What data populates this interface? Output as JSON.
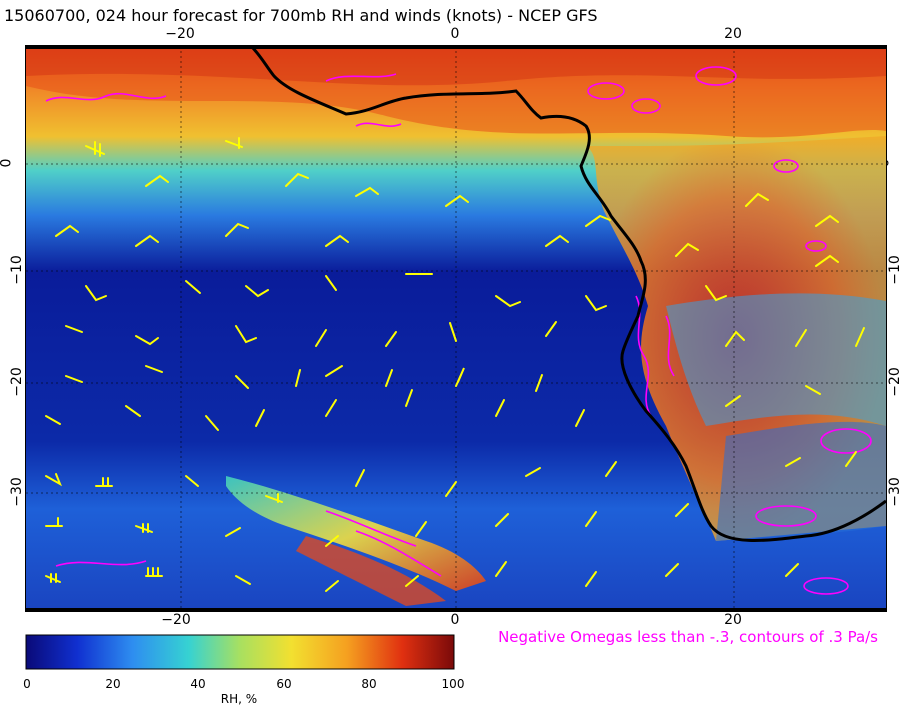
{
  "title": "15060700, 024 hour forecast for 700mb RH and winds (knots) - NCEP GFS",
  "axes": {
    "lon_ticks_top": [
      "−20",
      "0",
      "20"
    ],
    "lon_ticks_bottom": [
      "−20",
      "0",
      "20"
    ],
    "lat_ticks_left": [
      "0",
      "−10",
      "−20",
      "−30"
    ],
    "lat_ticks_right": [
      "0",
      "−10",
      "−20",
      "−30"
    ]
  },
  "colorbar": {
    "ticks": [
      "0",
      "20",
      "40",
      "60",
      "80",
      "100"
    ],
    "label": "RH, %",
    "colors": [
      "#0a0a78",
      "#1030d0",
      "#2e8ef0",
      "#36d2d2",
      "#a8e060",
      "#f2e030",
      "#f5a020",
      "#e03010",
      "#7a0a0a"
    ]
  },
  "omega_note": "Negative Omegas less than -.3, contours of .3 Pa/s",
  "colors": {
    "wind_barbs": "#ffff00",
    "omega_contours": "#ff00ff",
    "coastline": "#000000"
  }
}
